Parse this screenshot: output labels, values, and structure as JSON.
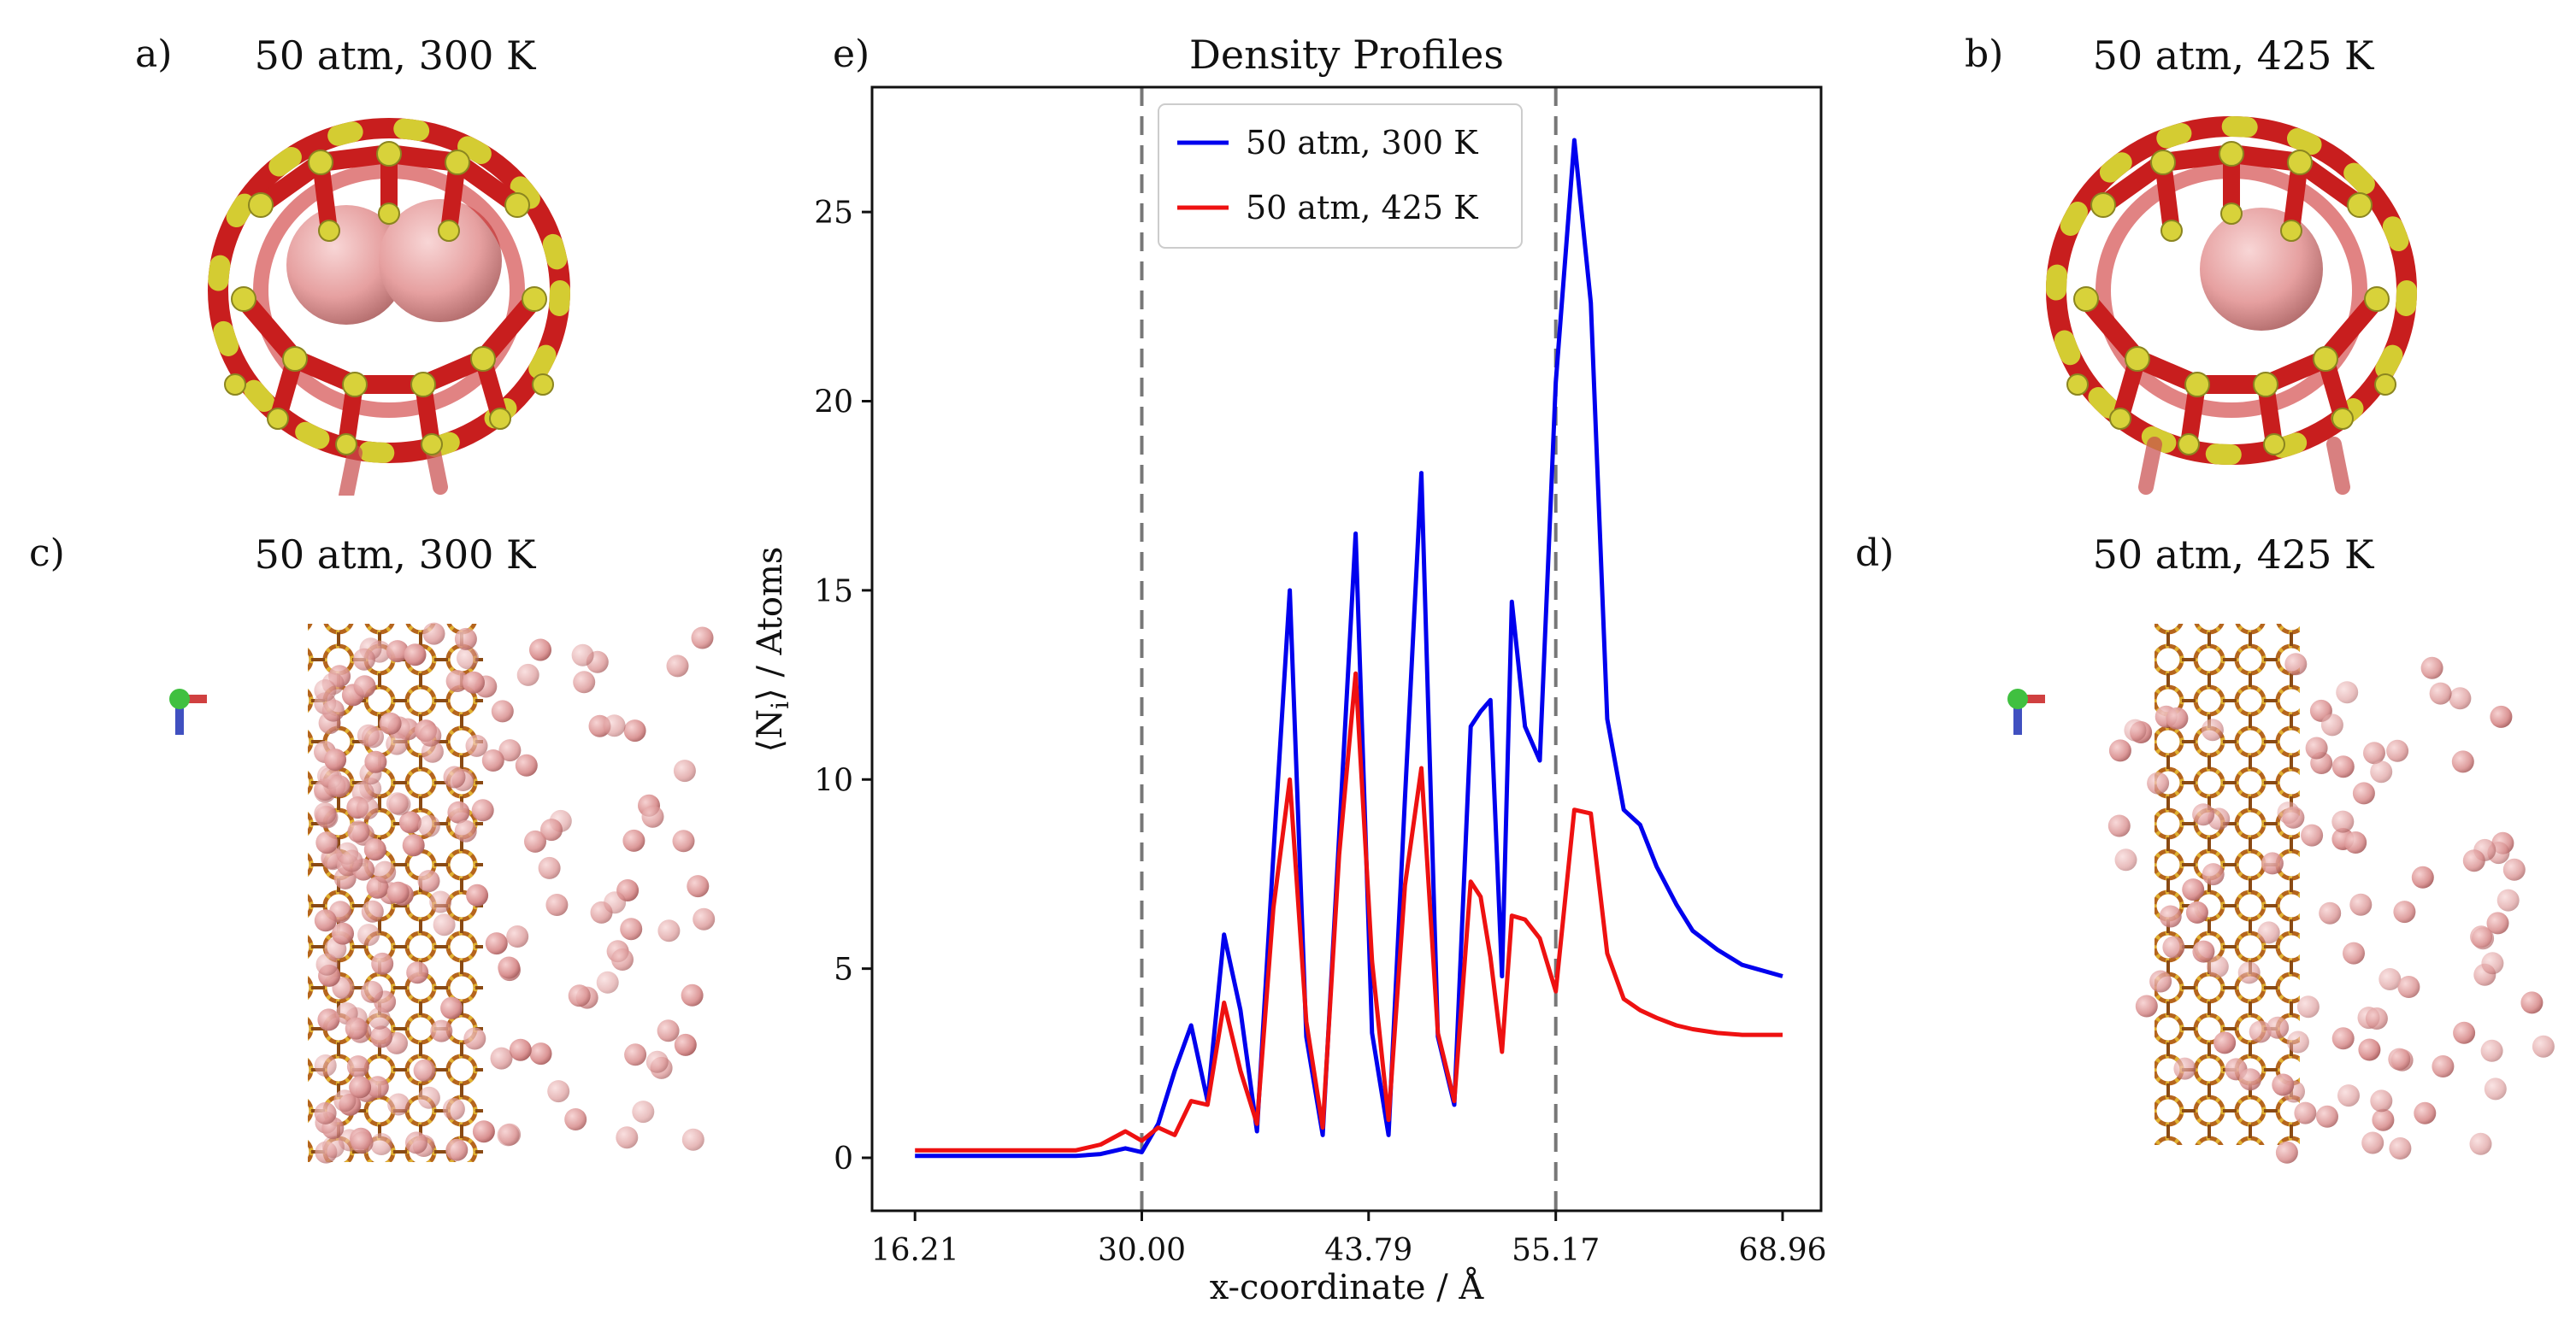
{
  "panels": {
    "a": {
      "label": "a)",
      "title": "50 atm, 300 K"
    },
    "b": {
      "label": "b)",
      "title": "50 atm, 425 K"
    },
    "c": {
      "label": "c)",
      "title": "50 atm, 300 K"
    },
    "d": {
      "label": "d)",
      "title": "50 atm, 425 K"
    },
    "e": {
      "label": "e)"
    }
  },
  "colors": {
    "framework_red": "#cc2222",
    "framework_yellow": "#d8d23a",
    "atom_pink": "#e8a4a4",
    "blue": "#0000ee",
    "red": "#ee1111"
  },
  "chart_data": {
    "type": "line",
    "title": "Density Profiles",
    "xlabel": "x-coordinate / Å",
    "ylabel": "⟨N",
    "ylabel_sub": "i",
    "ylabel_tail": "⟩ / Atoms",
    "xlim": [
      13.6,
      71.3
    ],
    "ylim": [
      -1.4,
      28.3
    ],
    "xticks": [
      16.21,
      30.0,
      43.79,
      55.17,
      68.96
    ],
    "xtick_labels": [
      "16.21",
      "30.00",
      "43.79",
      "55.17",
      "68.96"
    ],
    "yticks": [
      0,
      5,
      10,
      15,
      20,
      25
    ],
    "ytick_labels": [
      "0",
      "5",
      "10",
      "15",
      "20",
      "25"
    ],
    "vlines": [
      30.0,
      55.17
    ],
    "legend_position": "top-center",
    "series": [
      {
        "name": "50 atm, 300 K",
        "color": "#0000ee",
        "x": [
          16.21,
          18.0,
          20.0,
          22.0,
          24.0,
          26.0,
          27.5,
          29.0,
          30.0,
          31.0,
          32.0,
          33.0,
          34.0,
          35.0,
          36.0,
          37.0,
          38.0,
          39.0,
          40.0,
          41.0,
          42.0,
          43.0,
          44.0,
          45.0,
          46.0,
          47.0,
          48.0,
          49.0,
          50.0,
          50.6,
          51.2,
          51.9,
          52.5,
          53.3,
          54.2,
          55.17,
          56.3,
          57.3,
          58.3,
          59.3,
          60.3,
          61.3,
          62.5,
          63.5,
          65.0,
          66.5,
          68.96
        ],
        "y": [
          0.05,
          0.05,
          0.05,
          0.05,
          0.05,
          0.05,
          0.1,
          0.25,
          0.15,
          0.9,
          2.3,
          3.5,
          1.5,
          5.9,
          3.9,
          0.7,
          8.0,
          15.0,
          3.2,
          0.6,
          8.5,
          16.5,
          3.3,
          0.6,
          9.5,
          18.1,
          3.2,
          1.4,
          11.4,
          11.8,
          12.1,
          4.8,
          14.7,
          11.4,
          10.5,
          20.5,
          26.9,
          22.6,
          11.6,
          9.2,
          8.8,
          7.7,
          6.7,
          6.0,
          5.5,
          5.1,
          4.8
        ]
      },
      {
        "name": "50 atm, 425 K",
        "color": "#ee1111",
        "x": [
          16.21,
          18.0,
          20.0,
          22.0,
          24.0,
          26.0,
          27.5,
          29.0,
          30.0,
          31.0,
          32.0,
          33.0,
          34.0,
          35.0,
          36.0,
          37.0,
          38.0,
          39.0,
          40.0,
          41.0,
          42.0,
          43.0,
          44.0,
          45.0,
          46.0,
          47.0,
          48.0,
          49.0,
          50.0,
          50.6,
          51.2,
          51.9,
          52.5,
          53.3,
          54.2,
          55.17,
          56.3,
          57.3,
          58.3,
          59.3,
          60.3,
          61.3,
          62.5,
          63.5,
          65.0,
          66.5,
          68.96
        ],
        "y": [
          0.2,
          0.2,
          0.2,
          0.2,
          0.2,
          0.2,
          0.35,
          0.7,
          0.45,
          0.8,
          0.6,
          1.5,
          1.4,
          4.1,
          2.3,
          0.9,
          6.6,
          10.0,
          3.6,
          0.8,
          8.0,
          12.8,
          5.2,
          1.0,
          7.2,
          10.3,
          3.3,
          1.5,
          7.3,
          6.9,
          5.3,
          2.8,
          6.4,
          6.3,
          5.8,
          4.4,
          9.2,
          9.1,
          5.4,
          4.2,
          3.9,
          3.7,
          3.5,
          3.4,
          3.3,
          3.25,
          3.25
        ]
      }
    ]
  }
}
